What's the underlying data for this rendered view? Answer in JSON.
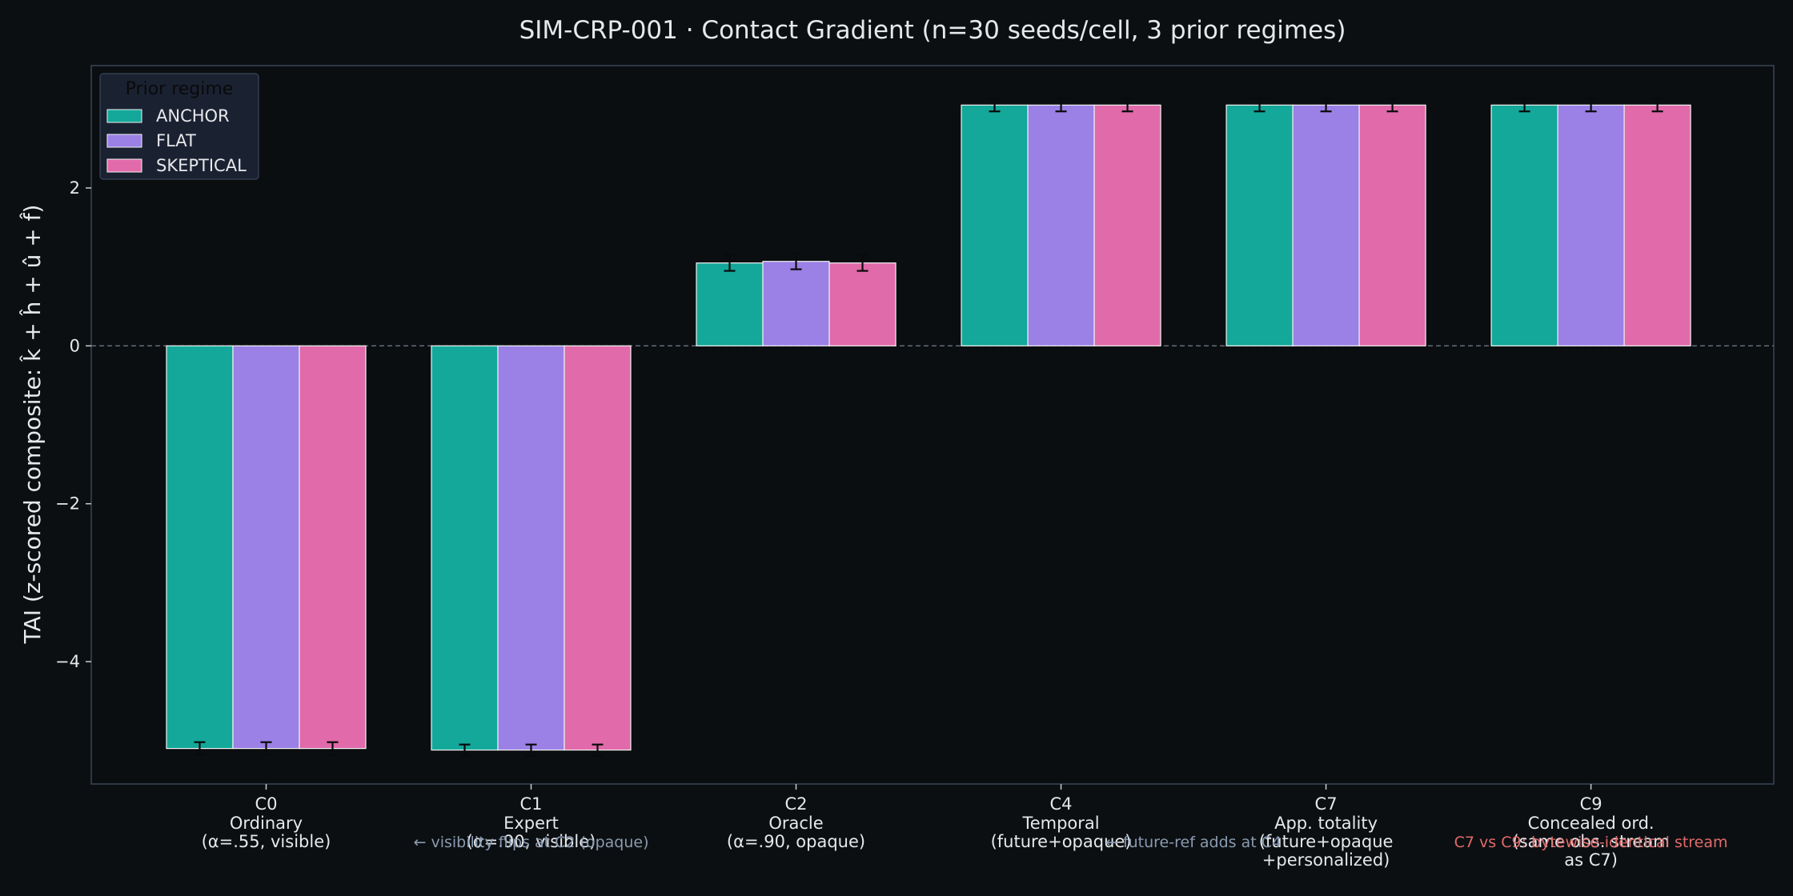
{
  "chart_data": {
    "type": "bar",
    "title": "SIM-CRP-001 · Contact Gradient (n=30 seeds/cell, 3 prior regimes)",
    "ylabel": "TAI (z-scored composite: k̂ + ĥ + û + f̂)",
    "xlabel": "",
    "ylim": [
      -5.55,
      3.55
    ],
    "yticks": [
      -4,
      -2,
      0,
      2
    ],
    "ytick_labels": [
      "−4",
      "−2",
      "0",
      "2"
    ],
    "reference_line": 0,
    "categories": [
      {
        "code": "C0",
        "lines": [
          "Ordinary",
          "(α=.55, visible)"
        ]
      },
      {
        "code": "C1",
        "lines": [
          "Expert",
          "(α=.90, visible)"
        ]
      },
      {
        "code": "C2",
        "lines": [
          "Oracle",
          "(α=.90, opaque)"
        ]
      },
      {
        "code": "C4",
        "lines": [
          "Temporal",
          "(future+opaque)"
        ]
      },
      {
        "code": "C7",
        "lines": [
          "App. totality",
          "(future+opaque",
          "+personalized)"
        ]
      },
      {
        "code": "C9",
        "lines": [
          "Concealed ord.",
          "(same obs. stream",
          "as C7)"
        ]
      }
    ],
    "series": [
      {
        "name": "ANCHOR",
        "color": "#13a899",
        "values": [
          -5.1,
          -5.12,
          1.05,
          3.05,
          3.05,
          3.05
        ],
        "errors": [
          0.08,
          0.07,
          0.1,
          0.08,
          0.08,
          0.08
        ]
      },
      {
        "name": "FLAT",
        "color": "#9b80e6",
        "values": [
          -5.1,
          -5.12,
          1.07,
          3.05,
          3.05,
          3.05
        ],
        "errors": [
          0.08,
          0.07,
          0.1,
          0.08,
          0.08,
          0.08
        ]
      },
      {
        "name": "SKEPTICAL",
        "color": "#e06aaa",
        "values": [
          -5.1,
          -5.12,
          1.05,
          3.05,
          3.05,
          3.05
        ],
        "errors": [
          0.08,
          0.07,
          0.1,
          0.08,
          0.08,
          0.08
        ]
      }
    ],
    "legend": {
      "title": "Prior regime",
      "placement": "top-left"
    },
    "annotations": [
      {
        "text": "← visibility flips at C2 (opaque)",
        "between": [
          "C0",
          "C2"
        ],
        "color": "#8a9bb0"
      },
      {
        "text": "← future-ref adds at C4",
        "between": [
          "C4",
          "C7"
        ],
        "color": "#8a9bb0"
      },
      {
        "text": "C7 vs C9: bytewise-identical stream",
        "between": [
          "C9",
          "C9"
        ],
        "color": "#e26a6a"
      }
    ]
  },
  "colors": {
    "background": "#0c0f12",
    "frame": "#3a4556",
    "legend_bg": "#1a2232",
    "legend_border": "#3a4556"
  }
}
